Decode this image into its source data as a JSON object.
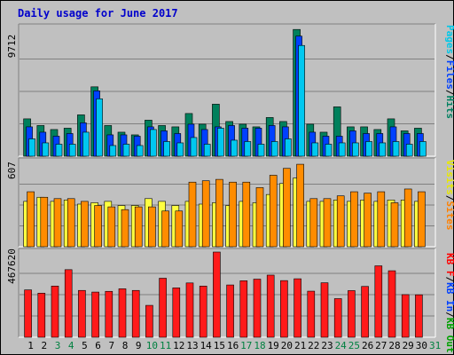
{
  "chart_data": [
    {
      "type": "bar",
      "title": "Daily usage for June 2017",
      "ymax_label": "9712",
      "ylim": [
        0,
        9712
      ],
      "categories": [
        "1",
        "2",
        "3",
        "4",
        "5",
        "6",
        "7",
        "8",
        "9",
        "10",
        "11",
        "12",
        "13",
        "14",
        "15",
        "16",
        "17",
        "18",
        "19",
        "20",
        "21",
        "22",
        "23",
        "24",
        "25",
        "26",
        "27",
        "28",
        "29",
        "30",
        "31"
      ],
      "weekend_days": [
        "3",
        "4",
        "10",
        "11",
        "17",
        "18",
        "24",
        "25",
        "31"
      ],
      "legend": [
        {
          "label": "Pages",
          "color": "#00c8e8"
        },
        {
          "label": "Files",
          "color": "#0040ff"
        },
        {
          "label": "Hits",
          "color": "#008060"
        }
      ],
      "series": [
        {
          "name": "Hits",
          "color": "#00805c",
          "values": [
            2800,
            2300,
            2000,
            2100,
            3100,
            5200,
            2300,
            1800,
            1600,
            2700,
            2300,
            2200,
            3200,
            2400,
            3900,
            2600,
            2400,
            2200,
            2900,
            2600,
            9500,
            2400,
            1800,
            3700,
            2200,
            2200,
            2000,
            2800,
            1900,
            2100,
            null
          ]
        },
        {
          "name": "Files",
          "color": "#0040ff",
          "values": [
            2200,
            1800,
            1500,
            1700,
            2500,
            4900,
            1600,
            1600,
            1500,
            2200,
            1900,
            1700,
            2400,
            2000,
            2200,
            2300,
            2100,
            2100,
            2300,
            2200,
            9000,
            1800,
            1500,
            1500,
            1900,
            1700,
            1700,
            2200,
            1700,
            1700,
            null
          ]
        },
        {
          "name": "Pages",
          "color": "#00c8f0",
          "values": [
            1300,
            1000,
            900,
            900,
            1800,
            4300,
            800,
            900,
            800,
            2000,
            1100,
            1000,
            1400,
            900,
            2100,
            1200,
            1100,
            900,
            1100,
            1300,
            8300,
            1000,
            900,
            1000,
            1000,
            1100,
            1000,
            1100,
            900,
            1100,
            null
          ]
        }
      ]
    },
    {
      "type": "bar",
      "ymax_label": "607",
      "ylim": [
        0,
        607
      ],
      "categories": [
        "1",
        "2",
        "3",
        "4",
        "5",
        "6",
        "7",
        "8",
        "9",
        "10",
        "11",
        "12",
        "13",
        "14",
        "15",
        "16",
        "17",
        "18",
        "19",
        "20",
        "21",
        "22",
        "23",
        "24",
        "25",
        "26",
        "27",
        "28",
        "29",
        "30",
        "31"
      ],
      "legend": [
        {
          "label": "Visits",
          "color": "#e8e800"
        },
        {
          "label": "Sites",
          "color": "#ff8000"
        }
      ],
      "series": [
        {
          "name": "Visits",
          "color": "#ffff40",
          "values": [
            330,
            360,
            330,
            340,
            310,
            320,
            330,
            300,
            300,
            350,
            330,
            300,
            330,
            310,
            320,
            300,
            330,
            320,
            380,
            460,
            500,
            330,
            330,
            340,
            330,
            340,
            330,
            340,
            340,
            330,
            null
          ]
        },
        {
          "name": "Sites",
          "color": "#ff8c00",
          "values": [
            400,
            360,
            350,
            350,
            330,
            300,
            290,
            270,
            290,
            290,
            260,
            260,
            470,
            480,
            490,
            470,
            470,
            430,
            520,
            570,
            600,
            350,
            350,
            370,
            400,
            390,
            400,
            320,
            420,
            400,
            null
          ]
        }
      ]
    },
    {
      "type": "bar",
      "ymax_label": "467620",
      "ylim": [
        0,
        467620
      ],
      "categories": [
        "1",
        "2",
        "3",
        "4",
        "5",
        "6",
        "7",
        "8",
        "9",
        "10",
        "11",
        "12",
        "13",
        "14",
        "15",
        "16",
        "17",
        "18",
        "19",
        "20",
        "21",
        "22",
        "23",
        "24",
        "25",
        "26",
        "27",
        "28",
        "29",
        "30",
        "31"
      ],
      "legend": [
        {
          "label": "KB F",
          "color": "#ff0000"
        },
        {
          "label": "KB In",
          "color": "#0040ff"
        },
        {
          "label": "KB Out",
          "color": "#00a000"
        }
      ],
      "series": [
        {
          "name": "KB F",
          "color": "#ff1a1a",
          "values": [
            260000,
            242000,
            281000,
            371000,
            257000,
            248000,
            252000,
            266000,
            257000,
            175000,
            324000,
            271000,
            298000,
            281000,
            467620,
            287000,
            310000,
            319000,
            341000,
            311000,
            321000,
            253000,
            299000,
            212000,
            256000,
            279000,
            392000,
            365000,
            234000,
            233000,
            null
          ]
        }
      ]
    }
  ]
}
